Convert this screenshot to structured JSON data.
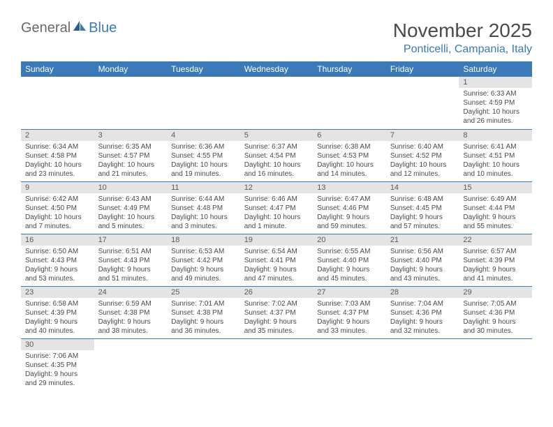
{
  "logo": {
    "part1": "General",
    "part2": "Blue"
  },
  "title": "November 2025",
  "location": "Ponticelli, Campania, Italy",
  "day_headers": [
    "Sunday",
    "Monday",
    "Tuesday",
    "Wednesday",
    "Thursday",
    "Friday",
    "Saturday"
  ],
  "colors": {
    "header_bg": "#3a7ab8",
    "header_text": "#ffffff",
    "day_num_bg": "#e4e4e4",
    "text_color": "#4a4a4a",
    "logo_gray": "#6a6a6a",
    "logo_blue": "#3a7ab8"
  },
  "weeks": [
    [
      null,
      null,
      null,
      null,
      null,
      null,
      {
        "num": "1",
        "sunrise": "Sunrise: 6:33 AM",
        "sunset": "Sunset: 4:59 PM",
        "daylight": "Daylight: 10 hours and 26 minutes."
      }
    ],
    [
      {
        "num": "2",
        "sunrise": "Sunrise: 6:34 AM",
        "sunset": "Sunset: 4:58 PM",
        "daylight": "Daylight: 10 hours and 23 minutes."
      },
      {
        "num": "3",
        "sunrise": "Sunrise: 6:35 AM",
        "sunset": "Sunset: 4:57 PM",
        "daylight": "Daylight: 10 hours and 21 minutes."
      },
      {
        "num": "4",
        "sunrise": "Sunrise: 6:36 AM",
        "sunset": "Sunset: 4:55 PM",
        "daylight": "Daylight: 10 hours and 19 minutes."
      },
      {
        "num": "5",
        "sunrise": "Sunrise: 6:37 AM",
        "sunset": "Sunset: 4:54 PM",
        "daylight": "Daylight: 10 hours and 16 minutes."
      },
      {
        "num": "6",
        "sunrise": "Sunrise: 6:38 AM",
        "sunset": "Sunset: 4:53 PM",
        "daylight": "Daylight: 10 hours and 14 minutes."
      },
      {
        "num": "7",
        "sunrise": "Sunrise: 6:40 AM",
        "sunset": "Sunset: 4:52 PM",
        "daylight": "Daylight: 10 hours and 12 minutes."
      },
      {
        "num": "8",
        "sunrise": "Sunrise: 6:41 AM",
        "sunset": "Sunset: 4:51 PM",
        "daylight": "Daylight: 10 hours and 10 minutes."
      }
    ],
    [
      {
        "num": "9",
        "sunrise": "Sunrise: 6:42 AM",
        "sunset": "Sunset: 4:50 PM",
        "daylight": "Daylight: 10 hours and 7 minutes."
      },
      {
        "num": "10",
        "sunrise": "Sunrise: 6:43 AM",
        "sunset": "Sunset: 4:49 PM",
        "daylight": "Daylight: 10 hours and 5 minutes."
      },
      {
        "num": "11",
        "sunrise": "Sunrise: 6:44 AM",
        "sunset": "Sunset: 4:48 PM",
        "daylight": "Daylight: 10 hours and 3 minutes."
      },
      {
        "num": "12",
        "sunrise": "Sunrise: 6:46 AM",
        "sunset": "Sunset: 4:47 PM",
        "daylight": "Daylight: 10 hours and 1 minute."
      },
      {
        "num": "13",
        "sunrise": "Sunrise: 6:47 AM",
        "sunset": "Sunset: 4:46 PM",
        "daylight": "Daylight: 9 hours and 59 minutes."
      },
      {
        "num": "14",
        "sunrise": "Sunrise: 6:48 AM",
        "sunset": "Sunset: 4:45 PM",
        "daylight": "Daylight: 9 hours and 57 minutes."
      },
      {
        "num": "15",
        "sunrise": "Sunrise: 6:49 AM",
        "sunset": "Sunset: 4:44 PM",
        "daylight": "Daylight: 9 hours and 55 minutes."
      }
    ],
    [
      {
        "num": "16",
        "sunrise": "Sunrise: 6:50 AM",
        "sunset": "Sunset: 4:43 PM",
        "daylight": "Daylight: 9 hours and 53 minutes."
      },
      {
        "num": "17",
        "sunrise": "Sunrise: 6:51 AM",
        "sunset": "Sunset: 4:43 PM",
        "daylight": "Daylight: 9 hours and 51 minutes."
      },
      {
        "num": "18",
        "sunrise": "Sunrise: 6:53 AM",
        "sunset": "Sunset: 4:42 PM",
        "daylight": "Daylight: 9 hours and 49 minutes."
      },
      {
        "num": "19",
        "sunrise": "Sunrise: 6:54 AM",
        "sunset": "Sunset: 4:41 PM",
        "daylight": "Daylight: 9 hours and 47 minutes."
      },
      {
        "num": "20",
        "sunrise": "Sunrise: 6:55 AM",
        "sunset": "Sunset: 4:40 PM",
        "daylight": "Daylight: 9 hours and 45 minutes."
      },
      {
        "num": "21",
        "sunrise": "Sunrise: 6:56 AM",
        "sunset": "Sunset: 4:40 PM",
        "daylight": "Daylight: 9 hours and 43 minutes."
      },
      {
        "num": "22",
        "sunrise": "Sunrise: 6:57 AM",
        "sunset": "Sunset: 4:39 PM",
        "daylight": "Daylight: 9 hours and 41 minutes."
      }
    ],
    [
      {
        "num": "23",
        "sunrise": "Sunrise: 6:58 AM",
        "sunset": "Sunset: 4:39 PM",
        "daylight": "Daylight: 9 hours and 40 minutes."
      },
      {
        "num": "24",
        "sunrise": "Sunrise: 6:59 AM",
        "sunset": "Sunset: 4:38 PM",
        "daylight": "Daylight: 9 hours and 38 minutes."
      },
      {
        "num": "25",
        "sunrise": "Sunrise: 7:01 AM",
        "sunset": "Sunset: 4:38 PM",
        "daylight": "Daylight: 9 hours and 36 minutes."
      },
      {
        "num": "26",
        "sunrise": "Sunrise: 7:02 AM",
        "sunset": "Sunset: 4:37 PM",
        "daylight": "Daylight: 9 hours and 35 minutes."
      },
      {
        "num": "27",
        "sunrise": "Sunrise: 7:03 AM",
        "sunset": "Sunset: 4:37 PM",
        "daylight": "Daylight: 9 hours and 33 minutes."
      },
      {
        "num": "28",
        "sunrise": "Sunrise: 7:04 AM",
        "sunset": "Sunset: 4:36 PM",
        "daylight": "Daylight: 9 hours and 32 minutes."
      },
      {
        "num": "29",
        "sunrise": "Sunrise: 7:05 AM",
        "sunset": "Sunset: 4:36 PM",
        "daylight": "Daylight: 9 hours and 30 minutes."
      }
    ],
    [
      {
        "num": "30",
        "sunrise": "Sunrise: 7:06 AM",
        "sunset": "Sunset: 4:35 PM",
        "daylight": "Daylight: 9 hours and 29 minutes."
      },
      null,
      null,
      null,
      null,
      null,
      null
    ]
  ]
}
